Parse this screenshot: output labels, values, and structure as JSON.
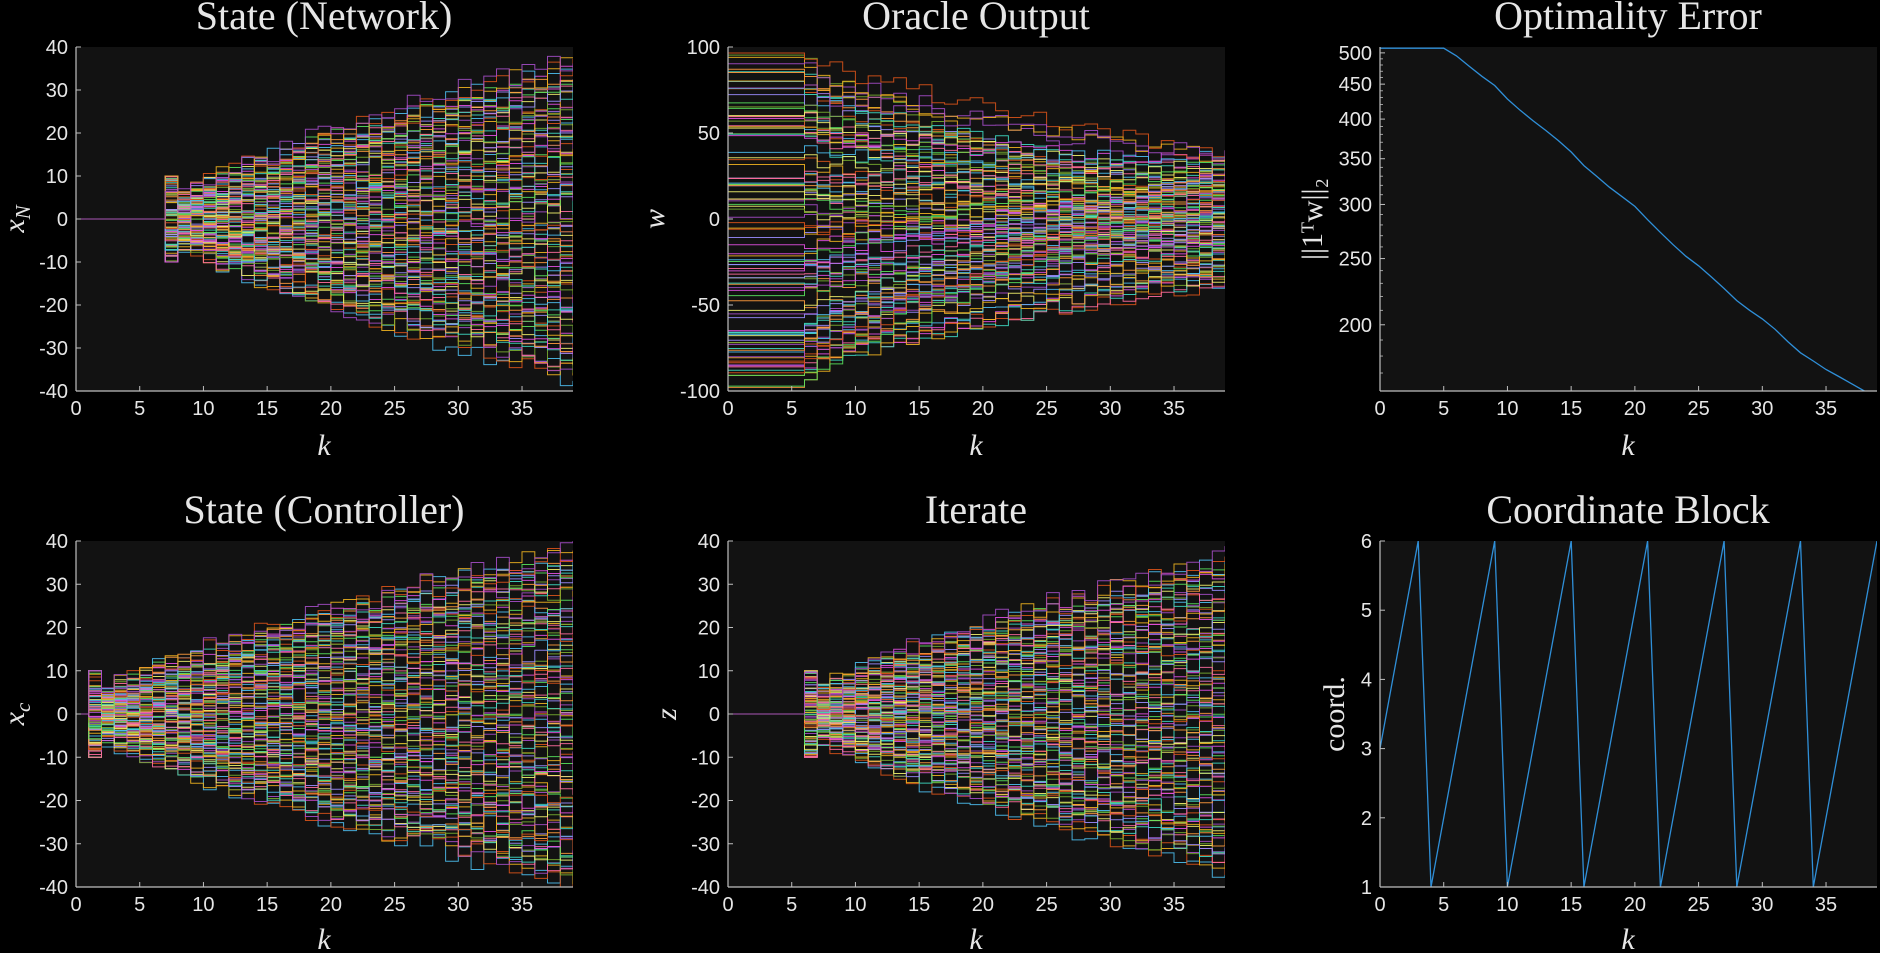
{
  "colors": {
    "figure_bg": "#000000",
    "axes_bg": "#121212",
    "axis": "#bfbfbf",
    "text": "#e6e6e6",
    "single_series": "#2f8fd8",
    "palette": [
      "#4dbeee",
      "#d95319",
      "#edb120",
      "#a44dc6",
      "#77ac30",
      "#ff6b9d",
      "#3ed9c2",
      "#f2f26b",
      "#9a8cff",
      "#ff9a3c",
      "#56e05c",
      "#e04fe0"
    ]
  },
  "chart_data": [
    {
      "id": "state-network",
      "type": "line",
      "title": "State (Network)",
      "xlabel": "k",
      "ylabel": "x",
      "ylabel_sub": "N",
      "xlim": [
        0,
        39
      ],
      "ylim": [
        -40,
        40
      ],
      "xticks": [
        0,
        5,
        10,
        15,
        20,
        25,
        30,
        35
      ],
      "yticks": [
        -40,
        -30,
        -20,
        -10,
        0,
        10,
        20,
        30,
        40
      ],
      "grid": false,
      "series_style": "ensemble",
      "ensemble": {
        "count": 100,
        "k_start": 6,
        "value_at_start": 0,
        "max_step": 10,
        "final_range": [
          -37,
          37
        ],
        "seed": 11
      }
    },
    {
      "id": "oracle-output",
      "type": "line",
      "title": "Oracle Output",
      "xlabel": "k",
      "ylabel": "w",
      "ylabel_sub": "",
      "xlim": [
        0,
        39
      ],
      "ylim": [
        -100,
        100
      ],
      "xticks": [
        0,
        5,
        10,
        15,
        20,
        25,
        30,
        35
      ],
      "yticks": [
        -100,
        -50,
        0,
        50,
        100
      ],
      "grid": false,
      "series_style": "ensemble",
      "ensemble": {
        "count": 100,
        "k_start": 5,
        "initial_range": [
          -98,
          98
        ],
        "final_range": [
          -37,
          37
        ],
        "seed": 23
      }
    },
    {
      "id": "optimality-error",
      "type": "line",
      "title": "Optimality Error",
      "xlabel": "k",
      "ylabel": "||1ᵀw||₂",
      "ylabel_sub": "",
      "yscale": "log",
      "xlim": [
        0,
        39
      ],
      "ylim": [
        160,
        510
      ],
      "xticks": [
        0,
        5,
        10,
        15,
        20,
        25,
        30,
        35
      ],
      "yticks": [
        200,
        250,
        300,
        350,
        400,
        450,
        500
      ],
      "grid": false,
      "x": [
        0,
        1,
        2,
        3,
        4,
        5,
        6,
        7,
        8,
        9,
        10,
        11,
        12,
        13,
        14,
        15,
        16,
        17,
        18,
        19,
        20,
        21,
        22,
        23,
        24,
        25,
        26,
        27,
        28,
        29,
        30,
        31,
        32,
        33,
        34,
        35,
        36,
        37,
        38,
        39
      ],
      "series": [
        {
          "values": [
            508,
            508,
            508,
            508,
            508,
            508,
            495,
            478,
            462,
            448,
            428,
            412,
            398,
            385,
            372,
            358,
            342,
            330,
            318,
            308,
            298,
            285,
            273,
            262,
            252,
            244,
            235,
            226,
            217,
            210,
            204,
            197,
            189,
            182,
            177,
            172,
            168,
            164,
            160,
            156
          ]
        }
      ]
    },
    {
      "id": "state-controller",
      "type": "line",
      "title": "State (Controller)",
      "xlabel": "k",
      "ylabel": "x",
      "ylabel_sub": "c",
      "xlim": [
        0,
        39
      ],
      "ylim": [
        -40,
        40
      ],
      "xticks": [
        0,
        5,
        10,
        15,
        20,
        25,
        30,
        35
      ],
      "yticks": [
        -40,
        -30,
        -20,
        -10,
        0,
        10,
        20,
        30,
        40
      ],
      "grid": false,
      "series_style": "ensemble",
      "ensemble": {
        "count": 100,
        "k_start": 0,
        "value_at_start": 0,
        "max_step": 10,
        "final_range": [
          -39,
          39
        ],
        "seed": 37
      }
    },
    {
      "id": "iterate",
      "type": "line",
      "title": "Iterate",
      "xlabel": "k",
      "ylabel": "z",
      "ylabel_sub": "",
      "xlim": [
        0,
        39
      ],
      "ylim": [
        -40,
        40
      ],
      "xticks": [
        0,
        5,
        10,
        15,
        20,
        25,
        30,
        35
      ],
      "yticks": [
        -40,
        -30,
        -20,
        -10,
        0,
        10,
        20,
        30,
        40
      ],
      "grid": false,
      "series_style": "ensemble",
      "ensemble": {
        "count": 100,
        "k_start": 5,
        "value_at_start": 0,
        "max_step": 10,
        "final_range": [
          -36,
          37
        ],
        "seed": 53
      }
    },
    {
      "id": "coordinate-block",
      "type": "line",
      "title": "Coordinate Block",
      "xlabel": "k",
      "ylabel": "coord.",
      "ylabel_sub": "",
      "xlim": [
        0,
        39
      ],
      "ylim": [
        1,
        6
      ],
      "xticks": [
        0,
        5,
        10,
        15,
        20,
        25,
        30,
        35
      ],
      "yticks": [
        1,
        2,
        3,
        4,
        5,
        6
      ],
      "grid": false,
      "x": [
        0,
        3,
        4,
        9,
        10,
        15,
        16,
        21,
        22,
        27,
        28,
        33,
        34,
        39
      ],
      "series": [
        {
          "values": [
            3,
            6,
            1,
            6,
            1,
            6,
            1,
            6,
            1,
            6,
            1,
            6,
            1,
            6
          ]
        }
      ]
    }
  ]
}
